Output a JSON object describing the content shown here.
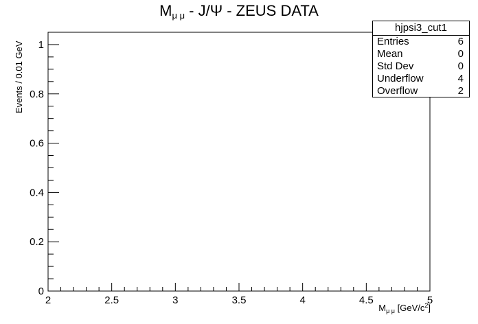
{
  "chart_data": {
    "type": "bar",
    "title_main": "M",
    "title_sub": "μ μ",
    "title_rest": " - J/Ψ - ZEUS DATA",
    "xlabel_main": "M",
    "xlabel_sub": "μ μ",
    "xlabel_rest": " [GeV/c",
    "xlabel_sup": "2",
    "xlabel_end": "]",
    "ylabel": "Events / 0.01 GeV",
    "xlim": [
      2,
      5
    ],
    "ylim": [
      0,
      1.05
    ],
    "x_ticks": [
      "2",
      "2.5",
      "3",
      "3.5",
      "4",
      "4.5",
      "5"
    ],
    "y_ticks": [
      "0",
      "0.2",
      "0.4",
      "0.6",
      "0.8",
      "1"
    ],
    "bin_width": 0.01,
    "values": [],
    "stats_box": {
      "name": "hjpsi3_cut1",
      "rows": [
        {
          "label": "Entries",
          "value": "6"
        },
        {
          "label": "Mean",
          "value": "0"
        },
        {
          "label": "Std Dev",
          "value": "0"
        },
        {
          "label": "Underflow",
          "value": "4"
        },
        {
          "label": "Overflow",
          "value": "2"
        }
      ]
    }
  }
}
